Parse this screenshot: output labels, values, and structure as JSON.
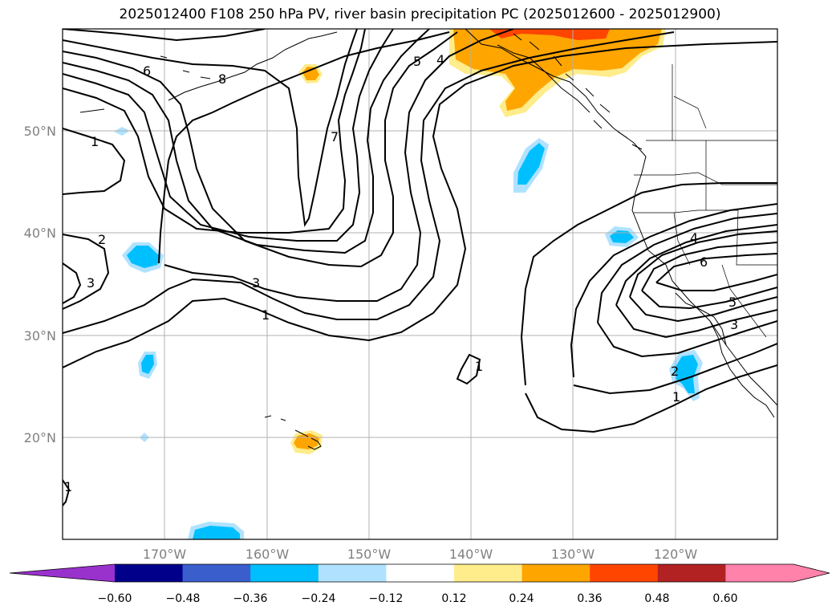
{
  "title": "2025012400 F108 250 hPa PV, river basin precipitation PC (2025012600 - 2025012900)",
  "axes": {
    "lat_labels": [
      "50°N",
      "40°N",
      "30°N",
      "20°N"
    ],
    "lon_labels": [
      "170°W",
      "160°W",
      "150°W",
      "140°W",
      "130°W",
      "120°W"
    ]
  },
  "pv_contour_labels": [
    "6",
    "8",
    "1",
    "5",
    "4",
    "7",
    "2",
    "3",
    "3",
    "1",
    "1",
    "4",
    "6",
    "5",
    "3",
    "2",
    "1",
    "1"
  ],
  "colorbar": {
    "ticks": [
      "−0.60",
      "−0.48",
      "−0.36",
      "−0.24",
      "−0.12",
      "0.12",
      "0.24",
      "0.36",
      "0.48",
      "0.60"
    ],
    "colors": [
      "#9932cc",
      "#00008b",
      "#3a5fcd",
      "#00bfff",
      "#b0e2ff",
      "#ffffff",
      "#ffec8b",
      "#ffa500",
      "#ff4500",
      "#b22222",
      "#ff82ab",
      "#ff82ab"
    ]
  }
}
